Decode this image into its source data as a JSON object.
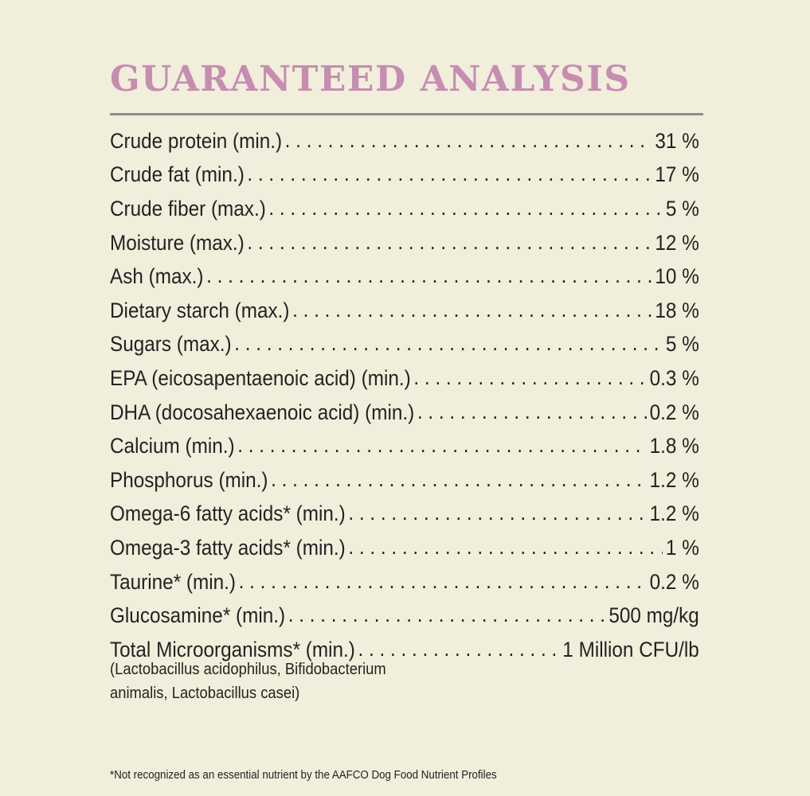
{
  "title": "GUARANTEED ANALYSIS",
  "rows": [
    {
      "label": "Crude protein (min.)",
      "value": "31 %"
    },
    {
      "label": "Crude fat (min.)",
      "value": "17 %"
    },
    {
      "label": "Crude fiber (max.)",
      "value": "5 %"
    },
    {
      "label": "Moisture (max.)",
      "value": "12 %"
    },
    {
      "label": "Ash (max.)",
      "value": "10 %"
    },
    {
      "label": "Dietary starch (max.)",
      "value": "18 %"
    },
    {
      "label": "Sugars (max.)",
      "value": "5 %"
    },
    {
      "label": "EPA (eicosapentaenoic acid) (min.)",
      "value": "0.3 %"
    },
    {
      "label": "DHA (docosahexaenoic acid) (min.)",
      "value": "0.2 %"
    },
    {
      "label": "Calcium (min.)",
      "value": "1.8 %"
    },
    {
      "label": "Phosphorus (min.)",
      "value": "1.2 %"
    },
    {
      "label": "Omega-6 fatty acids* (min.)",
      "value": "1.2 %"
    },
    {
      "label": "Omega-3 fatty acids* (min.)",
      "value": "1 %"
    },
    {
      "label": "Taurine* (min.)",
      "value": "0.2 %"
    },
    {
      "label": "Glucosamine* (min.)",
      "value": "500 mg/kg"
    },
    {
      "label": "Total Microorganisms* (min.)",
      "value": "1 Million CFU/lb"
    }
  ],
  "microorganisms_note": "(Lactobacillus acidophilus, Bifidobacterium animalis, Lactobacillus casei)",
  "footnote": "*Not recognized as an essential nutrient by the AAFCO Dog Food Nutrient Profiles"
}
